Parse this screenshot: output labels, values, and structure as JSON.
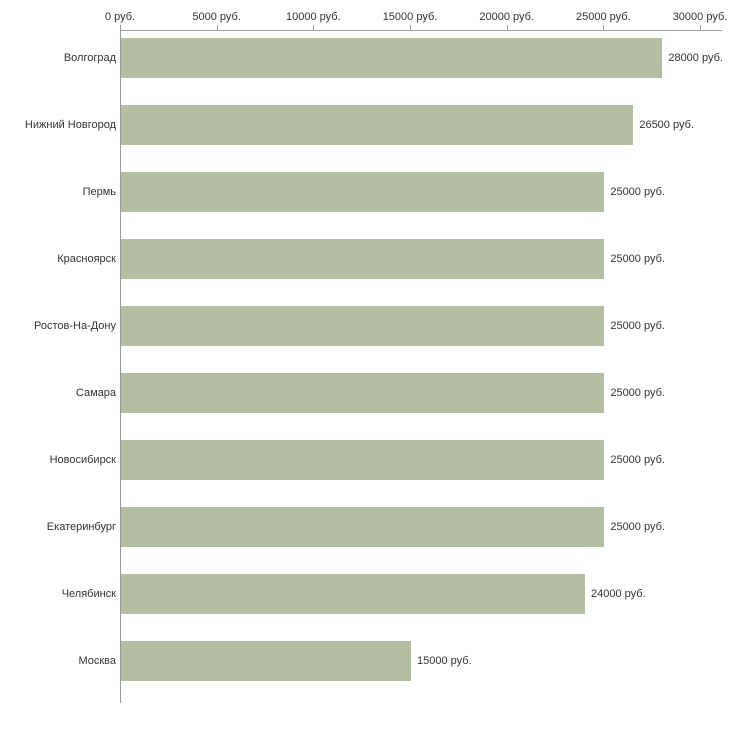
{
  "chart_data": {
    "type": "bar",
    "orientation": "horizontal",
    "title": "",
    "xlabel": "",
    "ylabel": "",
    "unit": "руб.",
    "categories": [
      "Волгоград",
      "Нижний Новгород",
      "Пермь",
      "Красноярск",
      "Ростов-На-Дону",
      "Самара",
      "Новосибирск",
      "Екатеринбург",
      "Челябинск",
      "Москва"
    ],
    "values": [
      28000,
      26500,
      25000,
      25000,
      25000,
      25000,
      25000,
      25000,
      24000,
      15000
    ],
    "value_labels": [
      "28000 руб.",
      "26500 руб.",
      "25000 руб.",
      "25000 руб.",
      "25000 руб.",
      "25000 руб.",
      "25000 руб.",
      "25000 руб.",
      "24000 руб.",
      "15000 руб."
    ],
    "xlim": [
      0,
      30000
    ],
    "x_ticks": [
      0,
      5000,
      10000,
      15000,
      20000,
      25000,
      30000
    ],
    "x_tick_labels": [
      "0 руб.",
      "5000 руб.",
      "10000 руб.",
      "15000 руб.",
      "20000 руб.",
      "25000 руб.",
      "30000 руб."
    ],
    "grid": false,
    "legend": "none",
    "bar_color": "#b4bfa2",
    "axis_color": "#9a9a9a",
    "text_color": "#333333"
  }
}
